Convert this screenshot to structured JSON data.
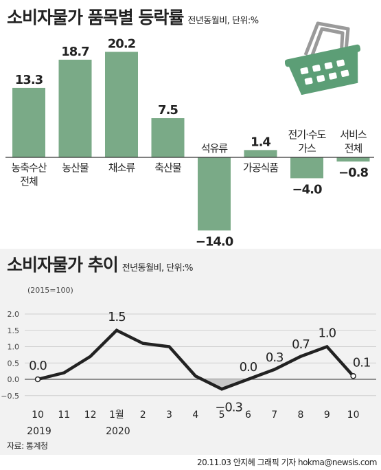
{
  "colors": {
    "bar": "#7aaa87",
    "basket": "#5c9e76",
    "line": "#222222",
    "negative_fill": "#c9c9c9",
    "background_band": "#f2f2f2"
  },
  "icons": {
    "basket": "shopping-basket-icon"
  },
  "chart_data": [
    {
      "type": "bar",
      "title": "소비자물가 품목별 등락률",
      "subtitle": "전년동월비, 단위:%",
      "categories": [
        [
          "농축수산",
          "전체"
        ],
        [
          "농산물"
        ],
        [
          "채소류"
        ],
        [
          "축산물"
        ],
        [
          "석유류"
        ],
        [
          "가공식품"
        ],
        [
          "전기·수도",
          "가스"
        ],
        [
          "서비스",
          "전체"
        ]
      ],
      "values": [
        13.3,
        18.7,
        20.2,
        7.5,
        -14.0,
        1.4,
        -4.0,
        -0.8
      ],
      "value_labels": [
        "13.3",
        "18.7",
        "20.2",
        "7.5",
        "−14.0",
        "1.4",
        "−4.0",
        "−0.8"
      ],
      "ylim": [
        -15,
        21
      ],
      "grid": false
    },
    {
      "type": "line",
      "title": "소비자물가 추이",
      "subtitle": "전년동월비, 단위:%",
      "note": "(2015=100)",
      "x": [
        "10",
        "11",
        "12",
        "1월",
        "2",
        "3",
        "4",
        "5",
        "6",
        "7",
        "8",
        "9",
        "10"
      ],
      "year_labels": {
        "0": "2019",
        "3": "2020"
      },
      "values": [
        0.0,
        0.2,
        0.7,
        1.5,
        1.1,
        1.0,
        0.1,
        -0.3,
        0.0,
        0.3,
        0.7,
        1.0,
        0.1
      ],
      "point_labels": {
        "0": "0.0",
        "3": "1.5",
        "7": "−0.3",
        "8": "0.0",
        "9": "0.3",
        "10": "0.7",
        "11": "1.0",
        "12": "0.1"
      },
      "y_ticks": [
        "2.0",
        "1.5",
        "1.0",
        "0.5",
        "0.0",
        "−0.5"
      ],
      "y_tick_values": [
        2.0,
        1.5,
        1.0,
        0.5,
        0.0,
        -0.5
      ],
      "ylim": [
        -0.5,
        2.0
      ],
      "grid": true
    }
  ],
  "footer": {
    "source": "자료: 통계청",
    "credit": "20.11.03 안지혜 그래픽 기자 hokma@newsis.com"
  }
}
